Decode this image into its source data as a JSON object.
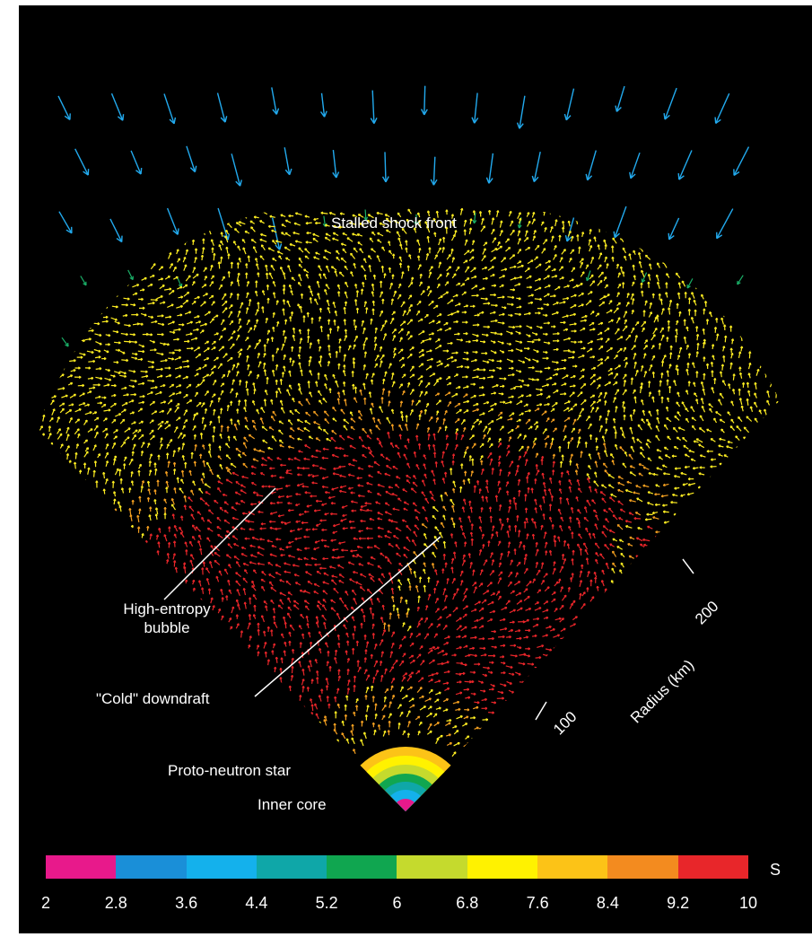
{
  "labels": {
    "stalled_shock_front": "Stalled shock front",
    "high_entropy_line1": "High-entropy",
    "high_entropy_line2": "bubble",
    "cold_downdraft": "\"Cold\" downdraft",
    "proto_neutron_star": "Proto-neutron star",
    "inner_core": "Inner core",
    "radius_axis": "Radius (km)",
    "radius_100": "100",
    "radius_200": "200"
  },
  "colorbar": {
    "unit": "S",
    "ticks": [
      "2",
      "2.8",
      "3.6",
      "4.4",
      "5.2",
      "6",
      "6.8",
      "7.6",
      "8.4",
      "9.2",
      "10"
    ],
    "colors": [
      "#e8198b",
      "#1a8fd8",
      "#14b1ec",
      "#0fa7a8",
      "#10a650",
      "#c5da2d",
      "#fff200",
      "#fcc317",
      "#f38b1f",
      "#e8262a"
    ]
  },
  "arrow_colors": {
    "infall": "#22aaee",
    "shock": "#1ab068",
    "convective": "#ffee22",
    "warm": "#f5a020",
    "hot": "#e8262a"
  }
}
